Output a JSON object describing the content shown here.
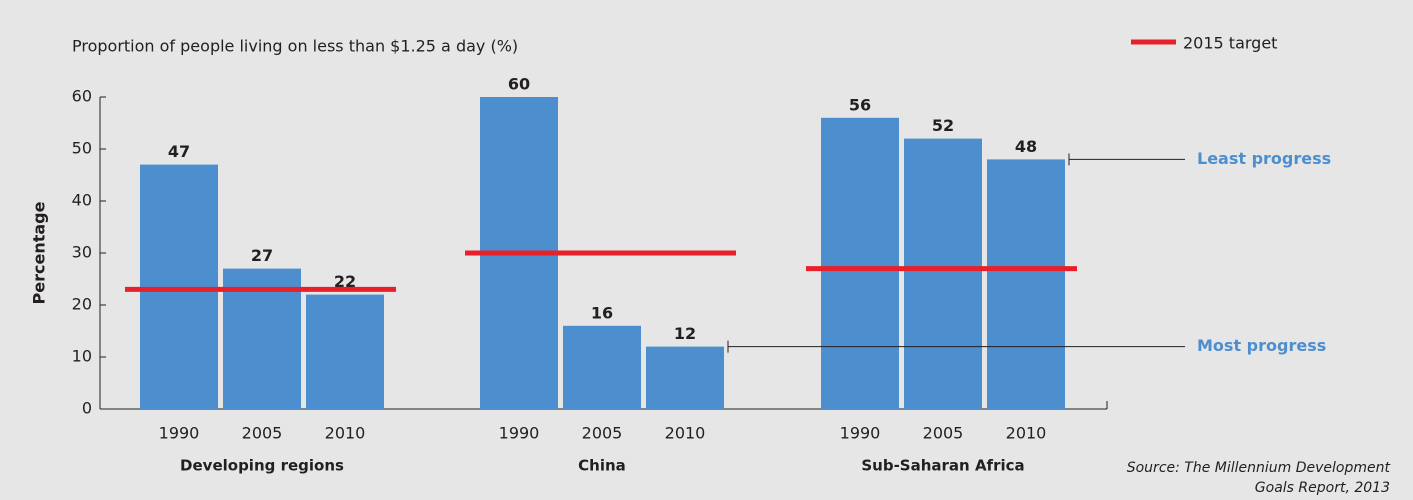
{
  "chart_data": {
    "type": "grouped_bar",
    "title": "Proportion of people living on less than $1.25 a day (%)",
    "y_label": "Percentage",
    "color": "#4d8fce",
    "target_color": "#e8202a",
    "legend": {
      "name": "2015 target",
      "position": "top-right"
    },
    "ylim": [
      0,
      60
    ],
    "yticks": [
      0,
      10,
      20,
      30,
      40,
      50,
      60
    ],
    "groups": [
      {
        "name": "Developing regions",
        "categories": [
          "1990",
          "2005",
          "2010"
        ],
        "values": [
          47,
          27,
          22
        ],
        "target": 23
      },
      {
        "name": "China",
        "categories": [
          "1990",
          "2005",
          "2010"
        ],
        "values": [
          60,
          16,
          12
        ],
        "target": 30
      },
      {
        "name": "Sub-Saharan Africa",
        "categories": [
          "1990",
          "2005",
          "2010"
        ],
        "values": [
          56,
          52,
          48
        ],
        "target": 27
      }
    ],
    "annotations": [
      "Least progress",
      "Most progress"
    ],
    "source": [
      "Source: The Millennium Development",
      "Goals Report, 2013"
    ]
  }
}
